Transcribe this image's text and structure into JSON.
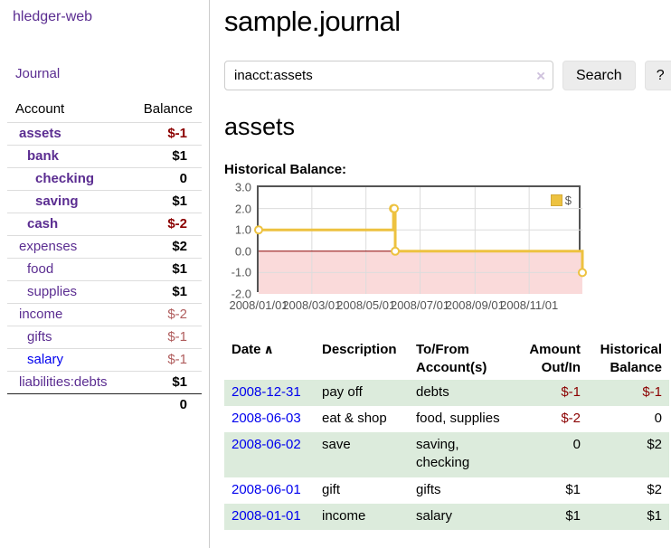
{
  "colors": {
    "link_purple": "#5b2d91",
    "link_blue": "#0000ee",
    "negative_strong": "#8b0000",
    "negative_soft": "#b05d5d",
    "row_stripe_green": "#dcebdc",
    "chart_line_gold": "#edc240",
    "chart_negative_fill": "#fadada",
    "chart_zero_line": "#8b0000",
    "chart_border": "#545454"
  },
  "sidebar": {
    "app_title": "hledger-web",
    "journal_link": "Journal",
    "accounts": {
      "header": {
        "account": "Account",
        "balance": "Balance"
      },
      "rows": [
        {
          "account": "assets",
          "balance": "$-1",
          "indent": 0,
          "bold": true,
          "neg": "strong"
        },
        {
          "account": "bank",
          "balance": "$1",
          "indent": 1,
          "bold": true,
          "neg": null
        },
        {
          "account": "checking",
          "balance": "0",
          "indent": 2,
          "bold": true,
          "neg": null
        },
        {
          "account": "saving",
          "balance": "$1",
          "indent": 2,
          "bold": true,
          "neg": null
        },
        {
          "account": "cash",
          "balance": "$-2",
          "indent": 1,
          "bold": true,
          "neg": "strong"
        },
        {
          "account": "expenses",
          "balance": "$2",
          "indent": 0,
          "bold": false,
          "neg": null
        },
        {
          "account": "food",
          "balance": "$1",
          "indent": 1,
          "bold": false,
          "neg": null
        },
        {
          "account": "supplies",
          "balance": "$1",
          "indent": 1,
          "bold": false,
          "neg": null
        },
        {
          "account": "income",
          "balance": "$-2",
          "indent": 0,
          "bold": false,
          "neg": "soft"
        },
        {
          "account": "gifts",
          "balance": "$-1",
          "indent": 1,
          "bold": false,
          "neg": "soft"
        },
        {
          "account": "salary",
          "balance": "$-1",
          "indent": 1,
          "bold": false,
          "neg": "soft",
          "blue": true
        },
        {
          "account": "liabilities:debts",
          "balance": "$1",
          "indent": 0,
          "bold": false,
          "neg": null
        }
      ],
      "total": "0"
    }
  },
  "main": {
    "page_title": "sample.journal",
    "search": {
      "value": "inacct:assets",
      "clear_icon": "×",
      "search_button": "Search",
      "help_button": "?"
    },
    "account_heading": "assets"
  },
  "chart_data": {
    "type": "line",
    "title": "Historical Balance:",
    "step": true,
    "series": [
      {
        "name": "$",
        "color": "#edc240",
        "points": [
          {
            "date": "2008-01-01",
            "value": 1.0
          },
          {
            "date": "2008-06-01",
            "value": 2.0
          },
          {
            "date": "2008-06-02",
            "value": 2.0
          },
          {
            "date": "2008-06-03",
            "value": 0.0
          },
          {
            "date": "2008-12-31",
            "value": -1.0
          }
        ]
      }
    ],
    "x_ticks": [
      "2008/01/01",
      "2008/03/01",
      "2008/05/01",
      "2008/07/01",
      "2008/09/01",
      "2008/11/01"
    ],
    "y_ticks": [
      3.0,
      2.0,
      1.0,
      0.0,
      -1.0,
      -2.0
    ],
    "ylim": [
      -2.0,
      3.0
    ],
    "x_range": [
      "2008-01-01",
      "2008-12-31"
    ],
    "grid": true,
    "legend_position": "top-right",
    "negative_region_color": "#fadada",
    "zero_line_color": "#8b0000"
  },
  "register": {
    "headers": {
      "date": "Date",
      "sort_icon": "∧",
      "description": "Description",
      "accounts": "To/From Account(s)",
      "amount": "Amount Out/In",
      "balance": "Historical Balance"
    },
    "rows": [
      {
        "date": "2008-12-31",
        "description": "pay off",
        "accounts": "debts",
        "amount": "$-1",
        "balance": "$-1",
        "amount_negative": true,
        "balance_negative": true
      },
      {
        "date": "2008-06-03",
        "description": "eat & shop",
        "accounts": "food, supplies",
        "amount": "$-2",
        "balance": "0",
        "amount_negative": true,
        "balance_negative": false
      },
      {
        "date": "2008-06-02",
        "description": "save",
        "accounts": "saving, checking",
        "amount": "0",
        "balance": "$2",
        "amount_negative": false,
        "balance_negative": false
      },
      {
        "date": "2008-06-01",
        "description": "gift",
        "accounts": "gifts",
        "amount": "$1",
        "balance": "$2",
        "amount_negative": false,
        "balance_negative": false
      },
      {
        "date": "2008-01-01",
        "description": "income",
        "accounts": "salary",
        "amount": "$1",
        "balance": "$1",
        "amount_negative": false,
        "balance_negative": false
      }
    ]
  }
}
